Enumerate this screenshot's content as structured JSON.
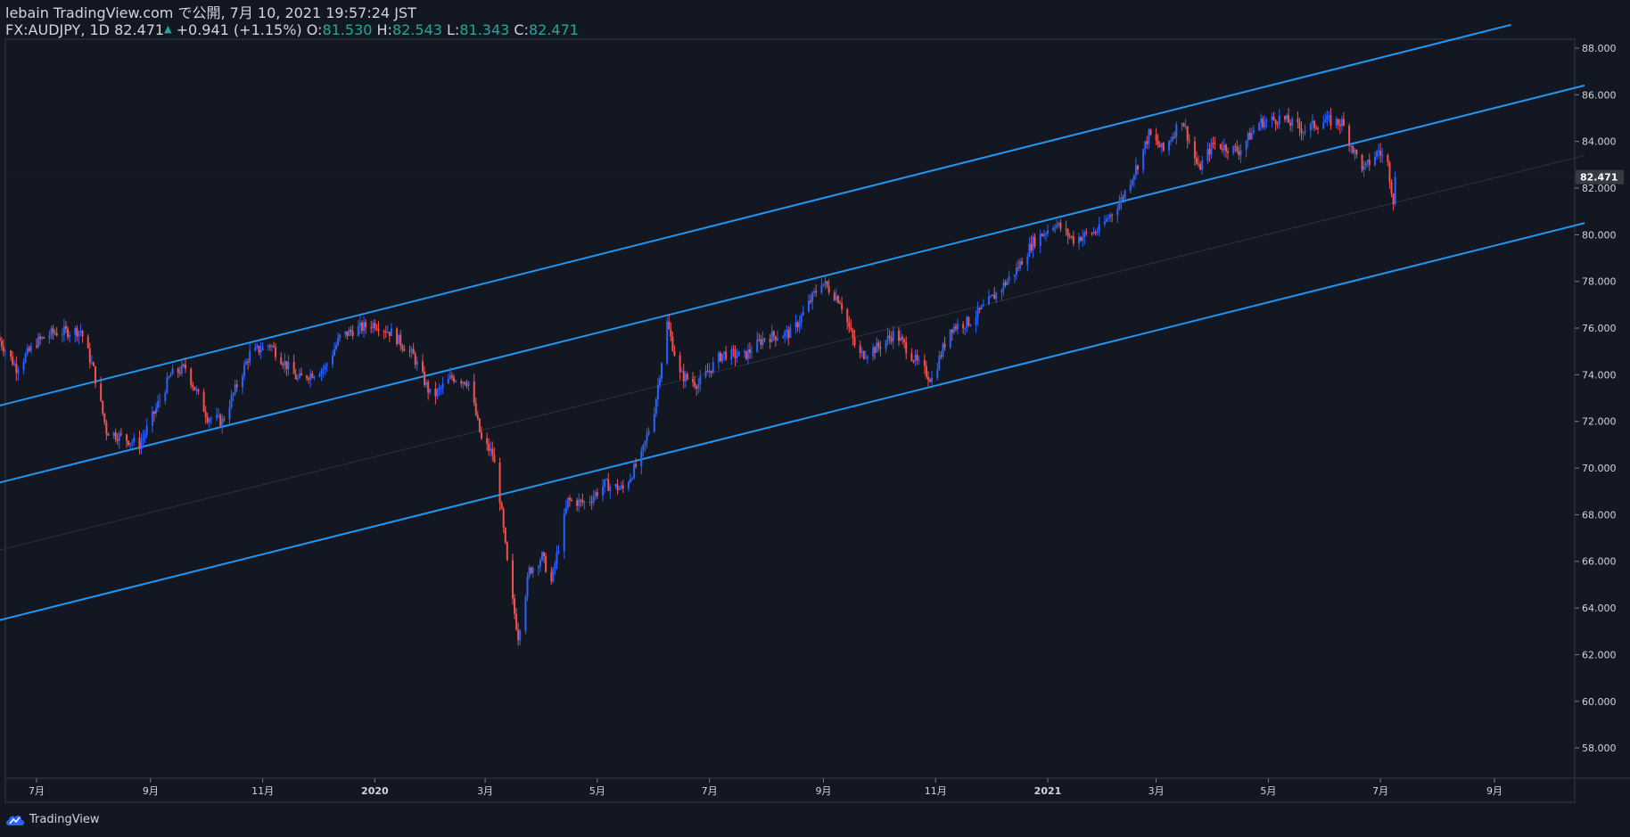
{
  "header": {
    "published": "lebain TradingView.com で公開, 7月 10, 2021 19:57:24 JST",
    "symbol_line": "FX:AUDJPY, 1D 82.471",
    "change": "+0.941 (+1.15%)",
    "o_label": "O:",
    "o_value": "81.530",
    "h_label": "H:",
    "h_value": "82.543",
    "l_label": "L:",
    "l_value": "81.343",
    "c_label": "C:",
    "c_value": "82.471"
  },
  "brand": {
    "logo_text": "TradingView",
    "logo_icon": "tradingview-cloud-icon"
  },
  "colors": {
    "background": "#131722",
    "up": "#2962ff",
    "down": "#ef5350",
    "channel": "#2196f3",
    "text": "#d1d4dc",
    "accent": "#26a69a"
  },
  "chart_data": {
    "type": "candlestick",
    "symbol": "FX:AUDJPY",
    "interval": "1D",
    "last_price": 82.471,
    "last_price_label": "82.471",
    "ylim": [
      57,
      89
    ],
    "y_ticks": [
      "58.000",
      "60.000",
      "62.000",
      "64.000",
      "66.000",
      "68.000",
      "70.000",
      "72.000",
      "74.000",
      "76.000",
      "78.000",
      "80.000",
      "82.000",
      "84.000",
      "86.000",
      "88.000"
    ],
    "x_ticks": [
      {
        "label": "7月",
        "date": "2019-07-01"
      },
      {
        "label": "9月",
        "date": "2019-09-01"
      },
      {
        "label": "11月",
        "date": "2019-11-01"
      },
      {
        "label": "2020",
        "date": "2020-01-01"
      },
      {
        "label": "3月",
        "date": "2020-03-01"
      },
      {
        "label": "5月",
        "date": "2020-05-01"
      },
      {
        "label": "7月",
        "date": "2020-07-01"
      },
      {
        "label": "9月",
        "date": "2020-09-01"
      },
      {
        "label": "11月",
        "date": "2020-11-01"
      },
      {
        "label": "2021",
        "date": "2021-01-01"
      },
      {
        "label": "3月",
        "date": "2021-03-01"
      },
      {
        "label": "5月",
        "date": "2021-05-01"
      },
      {
        "label": "7月",
        "date": "2021-07-01"
      },
      {
        "label": "9月",
        "date": "2021-09-01"
      }
    ],
    "price_path": [
      [
        "2019-06-10",
        75.6
      ],
      [
        "2019-06-20",
        74.3
      ],
      [
        "2019-07-01",
        75.4
      ],
      [
        "2019-07-10",
        75.8
      ],
      [
        "2019-07-25",
        75.9
      ],
      [
        "2019-08-01",
        74.2
      ],
      [
        "2019-08-08",
        71.6
      ],
      [
        "2019-08-26",
        71.0
      ],
      [
        "2019-09-01",
        72.0
      ],
      [
        "2019-09-12",
        74.0
      ],
      [
        "2019-09-20",
        74.3
      ],
      [
        "2019-10-02",
        72.2
      ],
      [
        "2019-10-10",
        72.0
      ],
      [
        "2019-10-25",
        74.9
      ],
      [
        "2019-11-05",
        75.3
      ],
      [
        "2019-11-20",
        73.8
      ],
      [
        "2019-12-05",
        74.3
      ],
      [
        "2019-12-13",
        75.6
      ],
      [
        "2019-12-20",
        75.9
      ],
      [
        "2020-01-01",
        76.2
      ],
      [
        "2020-01-10",
        75.8
      ],
      [
        "2020-01-22",
        74.8
      ],
      [
        "2020-02-01",
        73.0
      ],
      [
        "2020-02-12",
        73.9
      ],
      [
        "2020-02-21",
        73.7
      ],
      [
        "2020-02-28",
        71.2
      ],
      [
        "2020-03-05",
        70.6
      ],
      [
        "2020-03-09",
        68.7
      ],
      [
        "2020-03-14",
        65.2
      ],
      [
        "2020-03-19",
        62.8
      ],
      [
        "2020-03-25",
        65.6
      ],
      [
        "2020-04-01",
        66.2
      ],
      [
        "2020-04-06",
        65.1
      ],
      [
        "2020-04-15",
        68.6
      ],
      [
        "2020-04-25",
        68.5
      ],
      [
        "2020-05-05",
        69.3
      ],
      [
        "2020-05-15",
        69.1
      ],
      [
        "2020-05-25",
        70.5
      ],
      [
        "2020-06-01",
        72.5
      ],
      [
        "2020-06-08",
        76.2
      ],
      [
        "2020-06-15",
        74.0
      ],
      [
        "2020-06-25",
        73.6
      ],
      [
        "2020-07-08",
        74.9
      ],
      [
        "2020-07-20",
        74.8
      ],
      [
        "2020-07-31",
        75.6
      ],
      [
        "2020-08-15",
        75.8
      ],
      [
        "2020-08-31",
        78.0
      ],
      [
        "2020-09-10",
        77.2
      ],
      [
        "2020-09-20",
        74.8
      ],
      [
        "2020-10-01",
        75.2
      ],
      [
        "2020-10-10",
        75.8
      ],
      [
        "2020-10-22",
        74.5
      ],
      [
        "2020-10-30",
        73.8
      ],
      [
        "2020-11-09",
        76.0
      ],
      [
        "2020-11-20",
        76.3
      ],
      [
        "2020-12-01",
        77.2
      ],
      [
        "2020-12-15",
        78.5
      ],
      [
        "2020-12-24",
        79.7
      ],
      [
        "2021-01-05",
        80.5
      ],
      [
        "2021-01-15",
        79.8
      ],
      [
        "2021-01-29",
        80.2
      ],
      [
        "2021-02-10",
        81.5
      ],
      [
        "2021-02-20",
        83.2
      ],
      [
        "2021-02-25",
        84.3
      ],
      [
        "2021-03-05",
        83.6
      ],
      [
        "2021-03-15",
        85.0
      ],
      [
        "2021-03-24",
        82.8
      ],
      [
        "2021-04-01",
        83.9
      ],
      [
        "2021-04-15",
        83.6
      ],
      [
        "2021-04-26",
        84.8
      ],
      [
        "2021-05-08",
        85.0
      ],
      [
        "2021-05-20",
        84.5
      ],
      [
        "2021-06-01",
        84.9
      ],
      [
        "2021-06-10",
        84.8
      ],
      [
        "2021-06-17",
        83.5
      ],
      [
        "2021-06-22",
        82.8
      ],
      [
        "2021-06-30",
        83.6
      ],
      [
        "2021-07-05",
        83.0
      ],
      [
        "2021-07-08",
        81.5
      ],
      [
        "2021-07-09",
        82.471
      ]
    ],
    "drawings": [
      {
        "type": "channel-line",
        "points": [
          [
            "2019-06-07",
            72.6
          ],
          [
            "2021-09-10",
            89.0
          ]
        ]
      },
      {
        "type": "channel-line",
        "points": [
          [
            "2019-06-07",
            69.3
          ],
          [
            "2021-10-20",
            86.4
          ]
        ]
      },
      {
        "type": "channel-line",
        "points": [
          [
            "2019-06-07",
            63.4
          ],
          [
            "2021-10-20",
            80.5
          ]
        ]
      },
      {
        "type": "median-line",
        "points": [
          [
            "2019-06-07",
            66.4
          ],
          [
            "2021-10-20",
            83.4
          ]
        ]
      }
    ]
  }
}
